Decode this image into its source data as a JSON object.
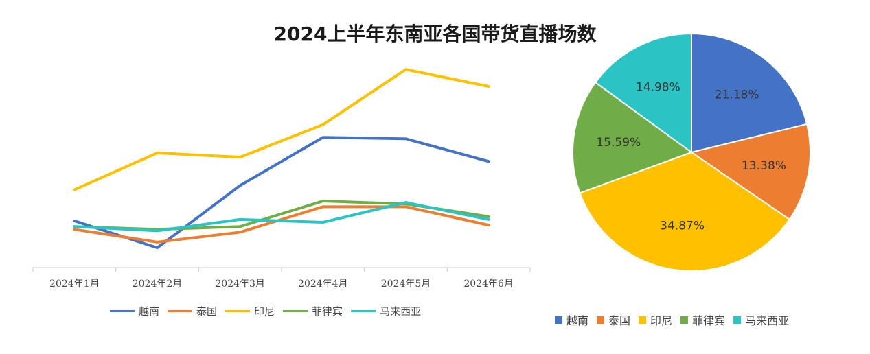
{
  "title": "2024上半年东南亚各国带货直播场数",
  "chart_data": [
    {
      "type": "line",
      "categories": [
        "2024年1月",
        "2024年2月",
        "2024年3月",
        "2024年4月",
        "2024年5月",
        "2024年6月"
      ],
      "series": [
        {
          "name": "越南",
          "color": "#4472C4",
          "values": [
            33,
            14,
            58,
            92,
            91,
            75
          ]
        },
        {
          "name": "泰国",
          "color": "#ED7D31",
          "values": [
            27,
            18,
            25,
            43,
            43,
            30
          ]
        },
        {
          "name": "印尼",
          "color": "#FFC000",
          "values": [
            55,
            81,
            78,
            101,
            140,
            128
          ]
        },
        {
          "name": "菲律宾",
          "color": "#70AD47",
          "values": [
            29,
            27,
            29,
            47,
            45,
            36
          ]
        },
        {
          "name": "马来西亚",
          "color": "#2BC4C4",
          "values": [
            29,
            26,
            34,
            32,
            46,
            34
          ]
        }
      ],
      "ylim": [
        0,
        160
      ],
      "xlabel": "",
      "ylabel": "",
      "grid": false,
      "legend": "bottom"
    },
    {
      "type": "pie",
      "slices": [
        {
          "name": "越南",
          "value": 21.18,
          "label": "21.18%",
          "color": "#4472C4"
        },
        {
          "name": "泰国",
          "value": 13.38,
          "label": "13.38%",
          "color": "#ED7D31"
        },
        {
          "name": "印尼",
          "value": 34.87,
          "label": "34.87%",
          "color": "#FFC000"
        },
        {
          "name": "菲律宾",
          "value": 15.59,
          "label": "15.59%",
          "color": "#70AD47"
        },
        {
          "name": "马来西亚",
          "value": 14.98,
          "label": "14.98%",
          "color": "#2BC4C4"
        }
      ],
      "legend": "bottom"
    }
  ]
}
